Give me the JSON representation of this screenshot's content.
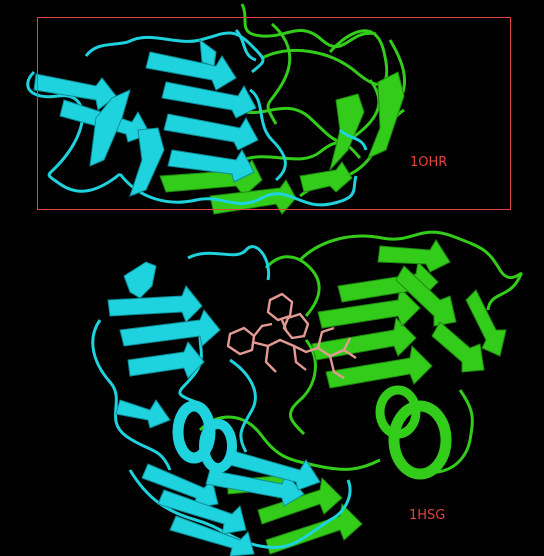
{
  "figure": {
    "background": "#000000",
    "chain_a_color": "#1fd3de",
    "chain_b_color": "#33cc1a",
    "ligand_color": "#e39a94",
    "annotation_color": "#e0443a",
    "structures": [
      {
        "label": "1OHR",
        "boxed": true
      },
      {
        "label": "1HSG",
        "boxed": false
      }
    ]
  }
}
